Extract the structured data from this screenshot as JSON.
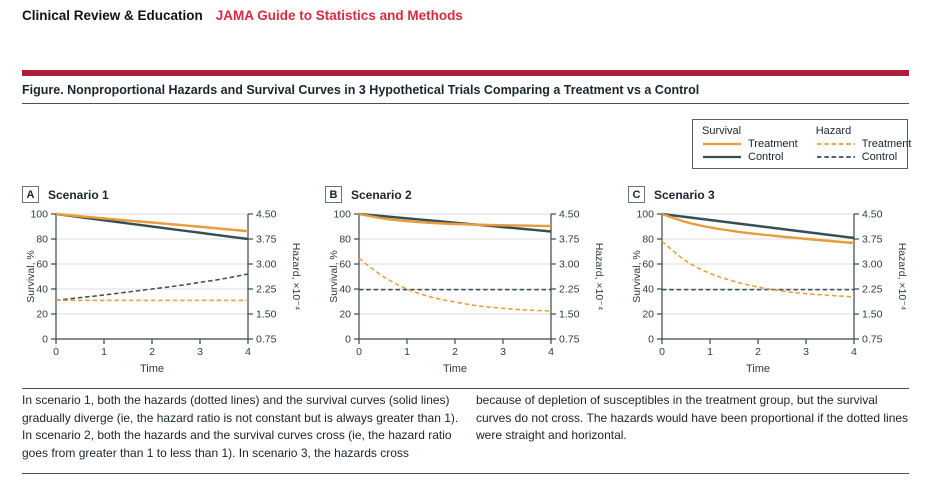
{
  "masthead": {
    "section": "Clinical Review & Education",
    "journal_series": "JAMA Guide to Statistics and Methods"
  },
  "figure_title": "Figure. Nonproportional Hazards and Survival Curves in 3 Hypothetical Trials Comparing a Treatment vs a Control",
  "caption": {
    "left": "In scenario 1, both the hazards (dotted lines) and the survival curves (solid lines) gradually diverge (ie, the hazard ratio is not constant but is always greater than 1). In scenario 2, both the hazards and the survival curves cross (ie, the hazard ratio goes from greater than 1 to less than 1). In scenario 3, the hazards cross",
    "right": "because of depletion of susceptibles in the treatment group, but the survival curves do not cross. The hazards would have been proportional if the dotted lines were straight and horizontal."
  },
  "colors": {
    "treatment": "#E89C3D",
    "control": "#374E55",
    "accent_bar": "#AE1C3C",
    "journal_red": "#D62B41",
    "grid": "#DCDCDC",
    "axis": "#37474F",
    "tick_text": "#2E3B44"
  },
  "legend": {
    "groups": [
      {
        "header": "Survival",
        "entries": [
          {
            "label": "Treatment",
            "style": "solid",
            "color_key": "treatment",
            "key": "survival-treatment"
          },
          {
            "label": "Control",
            "style": "solid",
            "color_key": "control",
            "key": "survival-control"
          }
        ]
      },
      {
        "header": "Hazard",
        "entries": [
          {
            "label": "Treatment",
            "style": "dashed",
            "color_key": "treatment",
            "key": "hazard-treatment"
          },
          {
            "label": "Control",
            "style": "dashed",
            "color_key": "control",
            "key": "hazard-control"
          }
        ]
      }
    ]
  },
  "chart_data": [
    {
      "type": "line",
      "panel_label": "A",
      "title": "Scenario 1",
      "xlabel": "Time",
      "ylabel_left": "Survival, %",
      "ylabel_right": "Hazard, ×10⁻⁴",
      "x_ticks": [
        0,
        1,
        2,
        3,
        4
      ],
      "xlim": [
        0,
        4
      ],
      "y_left_ticks": [
        0,
        20,
        40,
        60,
        80,
        100
      ],
      "ylim_left": [
        0,
        100
      ],
      "y_right_ticks": [
        "0.75",
        "1.50",
        "2.25",
        "3.00",
        "3.75",
        "4.50"
      ],
      "ylim_right": [
        0.75,
        4.5
      ],
      "grid": "horizontal",
      "x": [
        0,
        0.5,
        1,
        1.5,
        2,
        2.5,
        3,
        3.5,
        4
      ],
      "series": [
        {
          "name": "Control survival",
          "key": "control-survival",
          "axis": "left",
          "style": "solid",
          "color_key": "control",
          "values": [
            100,
            97.5,
            95,
            92.5,
            90,
            87.5,
            85,
            82.5,
            80
          ]
        },
        {
          "name": "Treatment survival",
          "key": "treatment-survival",
          "axis": "left",
          "style": "solid",
          "color_key": "treatment",
          "values": [
            100,
            98.2,
            96.5,
            94.8,
            93.2,
            91.5,
            89.8,
            88,
            86.3
          ]
        },
        {
          "name": "Control hazard",
          "key": "control-hazard",
          "axis": "right",
          "style": "dashed",
          "color_key": "control",
          "values": [
            1.91,
            1.99,
            2.07,
            2.16,
            2.25,
            2.34,
            2.45,
            2.56,
            2.7
          ]
        },
        {
          "name": "Treatment hazard",
          "key": "treatment-hazard",
          "axis": "right",
          "style": "dashed",
          "color_key": "treatment",
          "values": [
            1.91,
            1.91,
            1.91,
            1.91,
            1.91,
            1.91,
            1.91,
            1.91,
            1.91
          ]
        }
      ]
    },
    {
      "type": "line",
      "panel_label": "B",
      "title": "Scenario 2",
      "xlabel": "Time",
      "ylabel_left": "Survival, %",
      "ylabel_right": "Hazard, ×10⁻⁴",
      "x_ticks": [
        0,
        1,
        2,
        3,
        4
      ],
      "xlim": [
        0,
        4
      ],
      "y_left_ticks": [
        0,
        20,
        40,
        60,
        80,
        100
      ],
      "ylim_left": [
        0,
        100
      ],
      "y_right_ticks": [
        "0.75",
        "1.50",
        "2.25",
        "3.00",
        "3.75",
        "4.50"
      ],
      "ylim_right": [
        0.75,
        4.5
      ],
      "grid": "horizontal",
      "x": [
        0,
        0.5,
        1,
        1.5,
        2,
        2.5,
        3,
        3.5,
        4
      ],
      "series": [
        {
          "name": "Control survival",
          "key": "control-survival",
          "axis": "left",
          "style": "solid",
          "color_key": "control",
          "values": [
            100,
            98.3,
            96.5,
            94.8,
            93,
            91.3,
            89.5,
            87.8,
            86
          ]
        },
        {
          "name": "Treatment survival",
          "key": "treatment-survival",
          "axis": "left",
          "style": "solid",
          "color_key": "treatment",
          "values": [
            100,
            96.5,
            94.3,
            92.9,
            92.0,
            91.4,
            91.0,
            90.7,
            90.4
          ]
        },
        {
          "name": "Control hazard",
          "key": "control-hazard",
          "axis": "right",
          "style": "dashed",
          "color_key": "control",
          "values": [
            2.23,
            2.23,
            2.23,
            2.23,
            2.23,
            2.23,
            2.23,
            2.23,
            2.23
          ]
        },
        {
          "name": "Treatment hazard",
          "key": "treatment-hazard",
          "axis": "right",
          "style": "dashed",
          "color_key": "treatment",
          "values": [
            3.17,
            2.63,
            2.25,
            2.01,
            1.86,
            1.74,
            1.67,
            1.62,
            1.59
          ]
        }
      ]
    },
    {
      "type": "line",
      "panel_label": "C",
      "title": "Scenario 3",
      "xlabel": "Time",
      "ylabel_left": "Survival, %",
      "ylabel_right": "Hazard, ×10⁻⁴",
      "x_ticks": [
        0,
        1,
        2,
        3,
        4
      ],
      "xlim": [
        0,
        4
      ],
      "y_left_ticks": [
        0,
        20,
        40,
        60,
        80,
        100
      ],
      "ylim_left": [
        0,
        100
      ],
      "y_right_ticks": [
        "0.75",
        "1.50",
        "2.25",
        "3.00",
        "3.75",
        "4.50"
      ],
      "ylim_right": [
        0.75,
        4.5
      ],
      "grid": "horizontal",
      "x": [
        0,
        0.5,
        1,
        1.5,
        2,
        2.5,
        3,
        3.5,
        4
      ],
      "series": [
        {
          "name": "Control survival",
          "key": "control-survival",
          "axis": "left",
          "style": "solid",
          "color_key": "control",
          "values": [
            100,
            97.6,
            95.2,
            92.8,
            90.4,
            88.0,
            85.6,
            83.2,
            80.8
          ]
        },
        {
          "name": "Treatment survival",
          "key": "treatment-survival",
          "axis": "left",
          "style": "solid",
          "color_key": "treatment",
          "values": [
            100,
            93.5,
            89.3,
            86.3,
            83.9,
            81.9,
            80.1,
            78.4,
            76.8
          ]
        },
        {
          "name": "Control hazard",
          "key": "control-hazard",
          "axis": "right",
          "style": "dashed",
          "color_key": "control",
          "values": [
            2.23,
            2.23,
            2.23,
            2.23,
            2.23,
            2.23,
            2.23,
            2.23,
            2.23
          ]
        },
        {
          "name": "Treatment hazard",
          "key": "treatment-hazard",
          "axis": "right",
          "style": "dashed",
          "color_key": "treatment",
          "values": [
            3.68,
            3.09,
            2.72,
            2.48,
            2.31,
            2.19,
            2.11,
            2.06,
            2.01
          ]
        }
      ]
    }
  ]
}
